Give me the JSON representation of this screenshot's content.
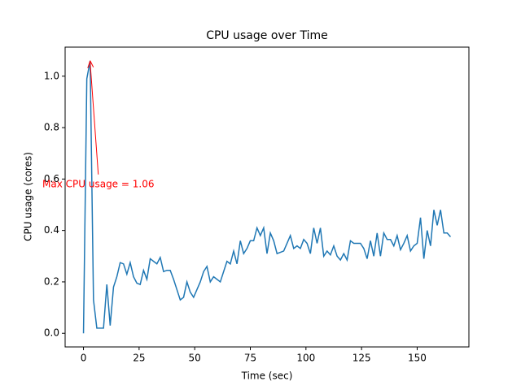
{
  "chart_data": {
    "type": "line",
    "title": "CPU usage over Time",
    "xlabel": "Time (sec)",
    "ylabel": "CPU usage (cores)",
    "annotation": "Max CPU usage = 1.06",
    "annotation_color": "#ff0000",
    "xlim": [
      -8.25,
      173.25
    ],
    "ylim": [
      -0.053,
      1.113
    ],
    "xticks": [
      0,
      25,
      50,
      75,
      100,
      125,
      150
    ],
    "yticks": [
      {
        "value": 0,
        "label": "0.0"
      },
      {
        "value": 0.2,
        "label": "0.2"
      },
      {
        "value": 0.4,
        "label": "0.4"
      },
      {
        "value": 0.6,
        "label": "0.6"
      },
      {
        "value": 0.8,
        "label": "0.8"
      },
      {
        "value": 1,
        "label": "1.0"
      }
    ],
    "series": [
      {
        "color": "#1f77b4",
        "x": [
          0,
          1.5,
          3,
          4.5,
          6,
          7.5,
          9,
          10.5,
          12,
          13.5,
          15,
          16.5,
          18,
          19.5,
          21,
          22.5,
          24,
          25.5,
          27,
          28.5,
          30,
          31.5,
          33,
          34.5,
          36,
          37.5,
          39,
          40.5,
          42,
          43.5,
          45,
          46.5,
          48,
          49.5,
          51,
          52.5,
          54,
          55.5,
          57,
          58.5,
          60,
          61.5,
          63,
          64.5,
          66,
          67.5,
          69,
          70.5,
          72,
          73.5,
          75,
          76.5,
          78,
          79.5,
          81,
          82.5,
          84,
          85.5,
          87,
          88.5,
          90,
          91.5,
          93,
          94.5,
          96,
          97.5,
          99,
          100.5,
          102,
          103.5,
          105,
          106.5,
          108,
          109.5,
          111,
          112.5,
          114,
          115.5,
          117,
          118.5,
          120,
          121.5,
          123,
          124.5,
          126,
          127.5,
          129,
          130.5,
          132,
          133.5,
          135,
          136.5,
          138,
          139.5,
          141,
          142.5,
          144,
          145.5,
          147,
          148.5,
          150,
          151.5,
          153,
          154.5,
          156,
          157.5,
          159,
          160.5,
          162,
          163.5,
          165
        ],
        "values": [
          0,
          0.99,
          1.06,
          0.13,
          0.02,
          0.02,
          0.02,
          0.19,
          0.03,
          0.18,
          0.22,
          0.275,
          0.27,
          0.23,
          0.275,
          0.22,
          0.195,
          0.19,
          0.245,
          0.21,
          0.29,
          0.28,
          0.27,
          0.295,
          0.24,
          0.245,
          0.245,
          0.21,
          0.17,
          0.13,
          0.14,
          0.2,
          0.16,
          0.14,
          0.17,
          0.2,
          0.24,
          0.26,
          0.2,
          0.22,
          0.21,
          0.2,
          0.24,
          0.28,
          0.27,
          0.32,
          0.27,
          0.36,
          0.31,
          0.33,
          0.36,
          0.36,
          0.41,
          0.38,
          0.41,
          0.31,
          0.39,
          0.36,
          0.31,
          0.315,
          0.32,
          0.35,
          0.38,
          0.33,
          0.34,
          0.33,
          0.365,
          0.35,
          0.31,
          0.41,
          0.35,
          0.41,
          0.3,
          0.32,
          0.305,
          0.34,
          0.3,
          0.285,
          0.31,
          0.285,
          0.36,
          0.35,
          0.35,
          0.35,
          0.33,
          0.29,
          0.36,
          0.3,
          0.39,
          0.3,
          0.39,
          0.365,
          0.365,
          0.34,
          0.38,
          0.325,
          0.35,
          0.38,
          0.32,
          0.34,
          0.35,
          0.45,
          0.29,
          0.4,
          0.34,
          0.48,
          0.42,
          0.48,
          0.39,
          0.39,
          0.375
        ]
      }
    ]
  }
}
